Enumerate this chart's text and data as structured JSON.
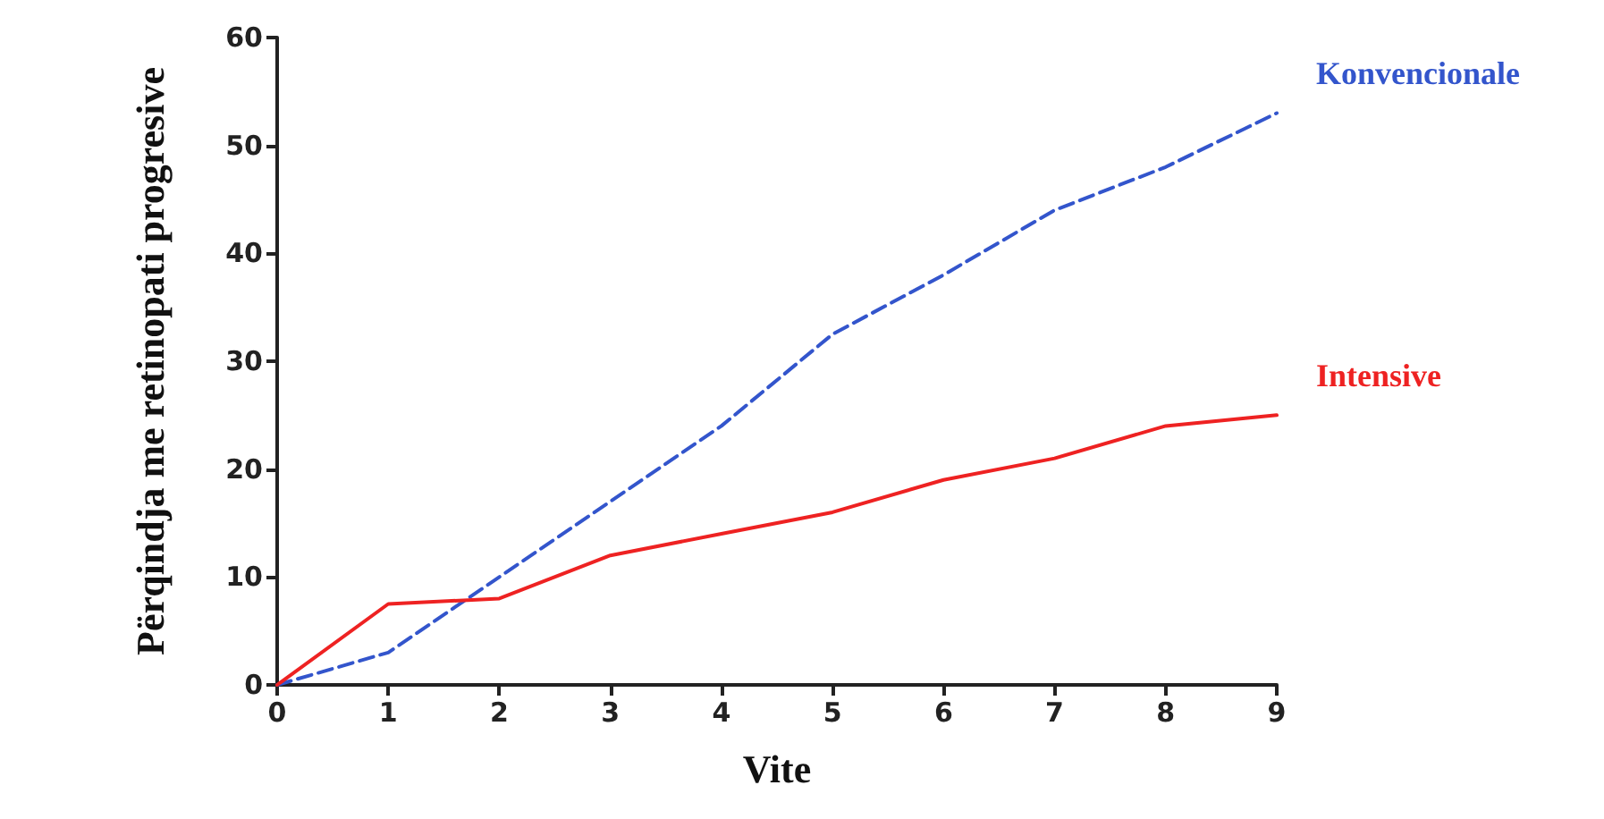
{
  "chart_data": {
    "type": "line",
    "xlabel": "Vite",
    "ylabel": "Përqindja me retinopati progresive",
    "x": [
      0,
      1,
      2,
      3,
      4,
      5,
      6,
      7,
      8,
      9
    ],
    "series": [
      {
        "name": "Konvencionale",
        "color": "#3355cc",
        "line_style": "dashed",
        "values": [
          0,
          3,
          10,
          17,
          24,
          32.5,
          38,
          44,
          48,
          53
        ]
      },
      {
        "name": "Intensive",
        "color": "#ee2222",
        "line_style": "solid",
        "values": [
          0,
          7.5,
          8,
          12,
          14,
          16,
          19,
          21,
          24,
          25
        ]
      }
    ],
    "xlim": [
      0,
      9
    ],
    "xticks": [
      0,
      1,
      2,
      3,
      4,
      5,
      6,
      7,
      8,
      9
    ],
    "ylim": [
      0,
      60
    ],
    "yticks": [
      0,
      10,
      20,
      30,
      40,
      50,
      60
    ],
    "grid": false,
    "legend": false,
    "marker": "none"
  }
}
